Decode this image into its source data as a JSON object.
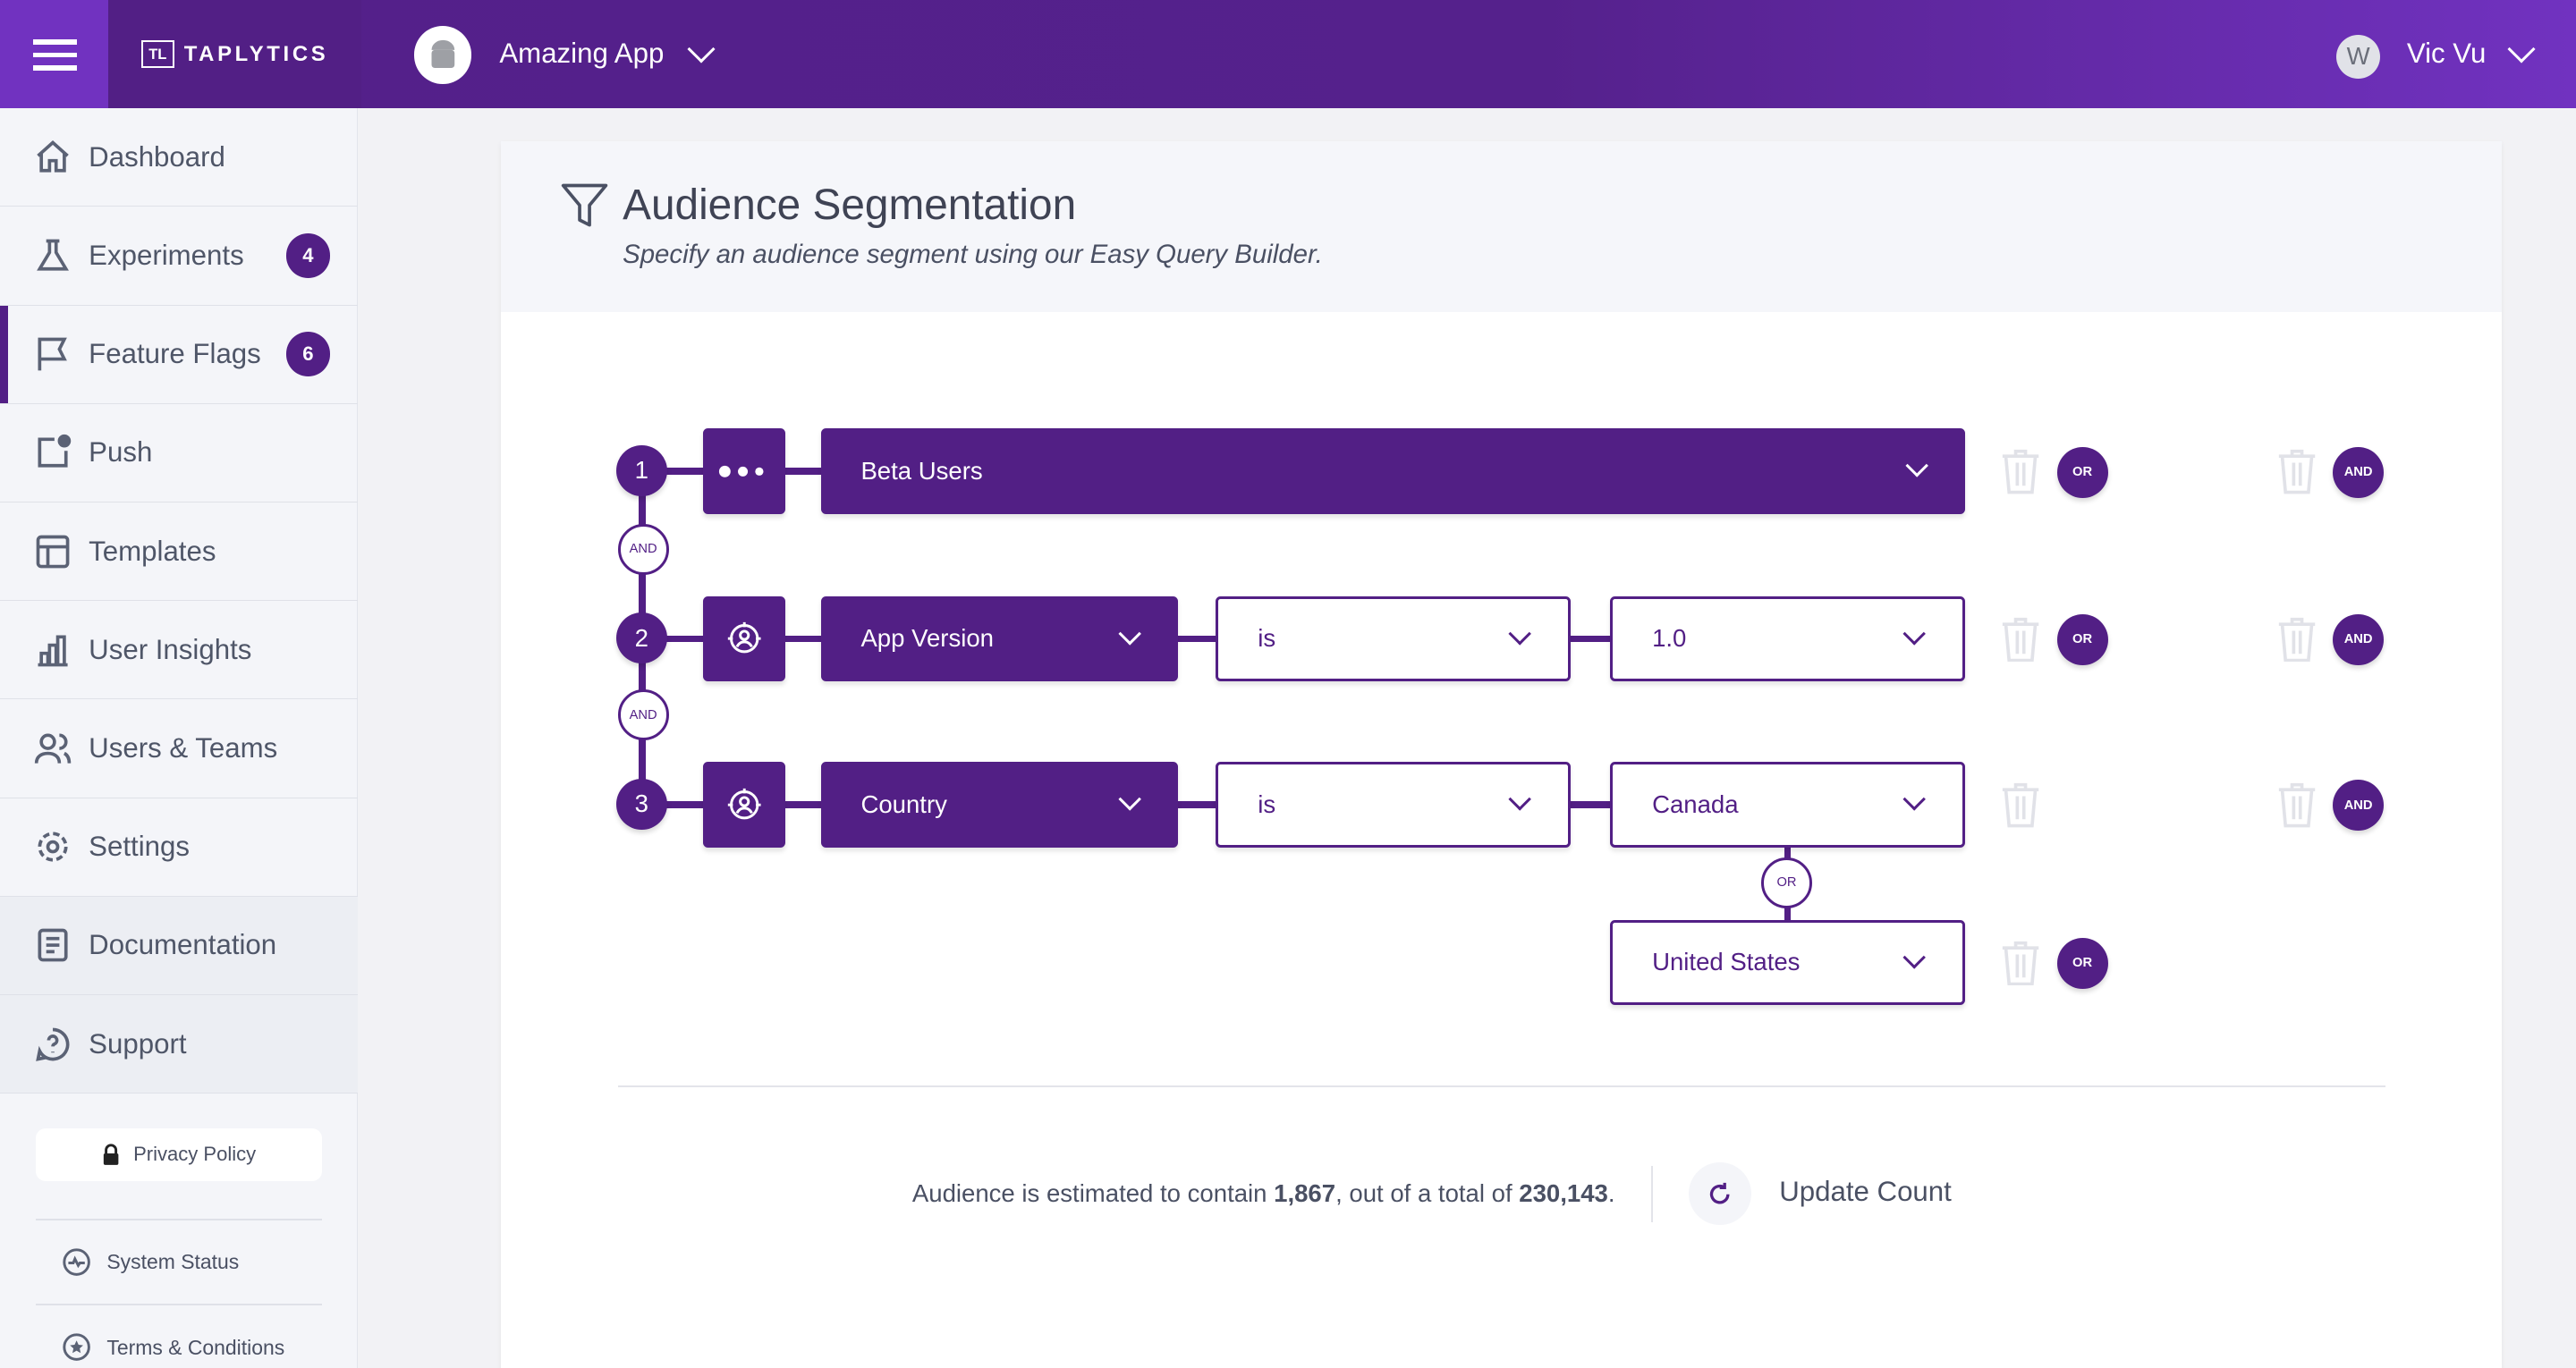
{
  "header": {
    "brand": "TAPLYTICS",
    "brand_mark": "TL",
    "app_name": "Amazing App",
    "user_initial": "W",
    "user_name": "Vic Vu"
  },
  "sidebar": {
    "items": [
      {
        "label": "Dashboard",
        "icon": "home-icon"
      },
      {
        "label": "Experiments",
        "icon": "flask-icon",
        "badge": "4"
      },
      {
        "label": "Feature Flags",
        "icon": "flag-icon",
        "badge": "6",
        "active": true
      },
      {
        "label": "Push",
        "icon": "push-icon"
      },
      {
        "label": "Templates",
        "icon": "template-icon"
      },
      {
        "label": "User Insights",
        "icon": "bar-chart-icon"
      },
      {
        "label": "Users & Teams",
        "icon": "users-icon"
      },
      {
        "label": "Settings",
        "icon": "gear-icon"
      },
      {
        "label": "Documentation",
        "icon": "document-icon"
      },
      {
        "label": "Support",
        "icon": "help-icon"
      }
    ],
    "privacy": "Privacy Policy",
    "status": "System Status",
    "terms": "Terms & Conditions"
  },
  "main": {
    "title": "Audience Segmentation",
    "subtitle": "Specify an audience segment using our Easy Query Builder.",
    "rows": [
      {
        "num": "1",
        "segment": "Beta Users"
      },
      {
        "num": "2",
        "field": "App Version",
        "operator": "is",
        "value": "1.0"
      },
      {
        "num": "3",
        "field": "Country",
        "operator": "is",
        "value": "Canada",
        "or_value": "United States"
      }
    ],
    "and_label": "AND",
    "or_label": "OR",
    "estimate_prefix": "Audience is estimated to contain ",
    "estimate_count": "1,867",
    "estimate_mid": ", out of a total of ",
    "estimate_total": "230,143",
    "estimate_suffix": ".",
    "update_label": "Update Count"
  },
  "colors": {
    "accent": "#521f85",
    "header_light": "#7132c0"
  }
}
